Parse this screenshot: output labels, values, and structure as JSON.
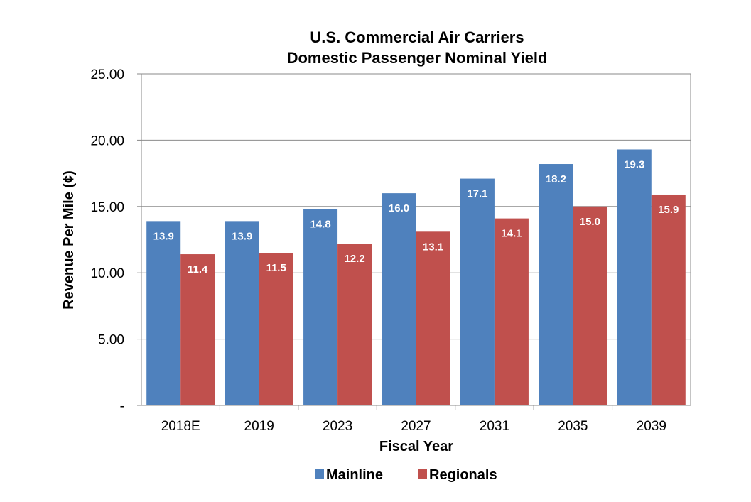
{
  "chart_data": {
    "type": "bar",
    "title": [
      "U.S. Commercial Air Carriers",
      "Domestic Passenger Nominal Yield"
    ],
    "xlabel": "Fiscal Year",
    "ylabel": "Revenue Per Mile (¢)",
    "categories": [
      "2018E",
      "2019",
      "2023",
      "2027",
      "2031",
      "2035",
      "2039"
    ],
    "series": [
      {
        "name": "Mainline",
        "color": "#4F81BD",
        "values": [
          13.9,
          13.9,
          14.8,
          16.0,
          17.1,
          18.2,
          19.3
        ],
        "labels": [
          "13.9",
          "13.9",
          "14.8",
          "16.0",
          "17.1",
          "18.2",
          "19.3"
        ]
      },
      {
        "name": "Regionals",
        "color": "#C0504D",
        "values": [
          11.4,
          11.5,
          12.2,
          13.1,
          14.1,
          15.0,
          15.9
        ],
        "labels": [
          "11.4",
          "11.5",
          "12.2",
          "13.1",
          "14.1",
          "15.0",
          "15.9"
        ]
      }
    ],
    "ylim": [
      0,
      25
    ],
    "yticks": [
      0,
      5,
      10,
      15,
      20,
      25
    ],
    "ytick_labels": [
      "-",
      "5.00",
      "10.00",
      "15.00",
      "20.00",
      "25.00"
    ],
    "grid": true,
    "legend": "bottom"
  }
}
